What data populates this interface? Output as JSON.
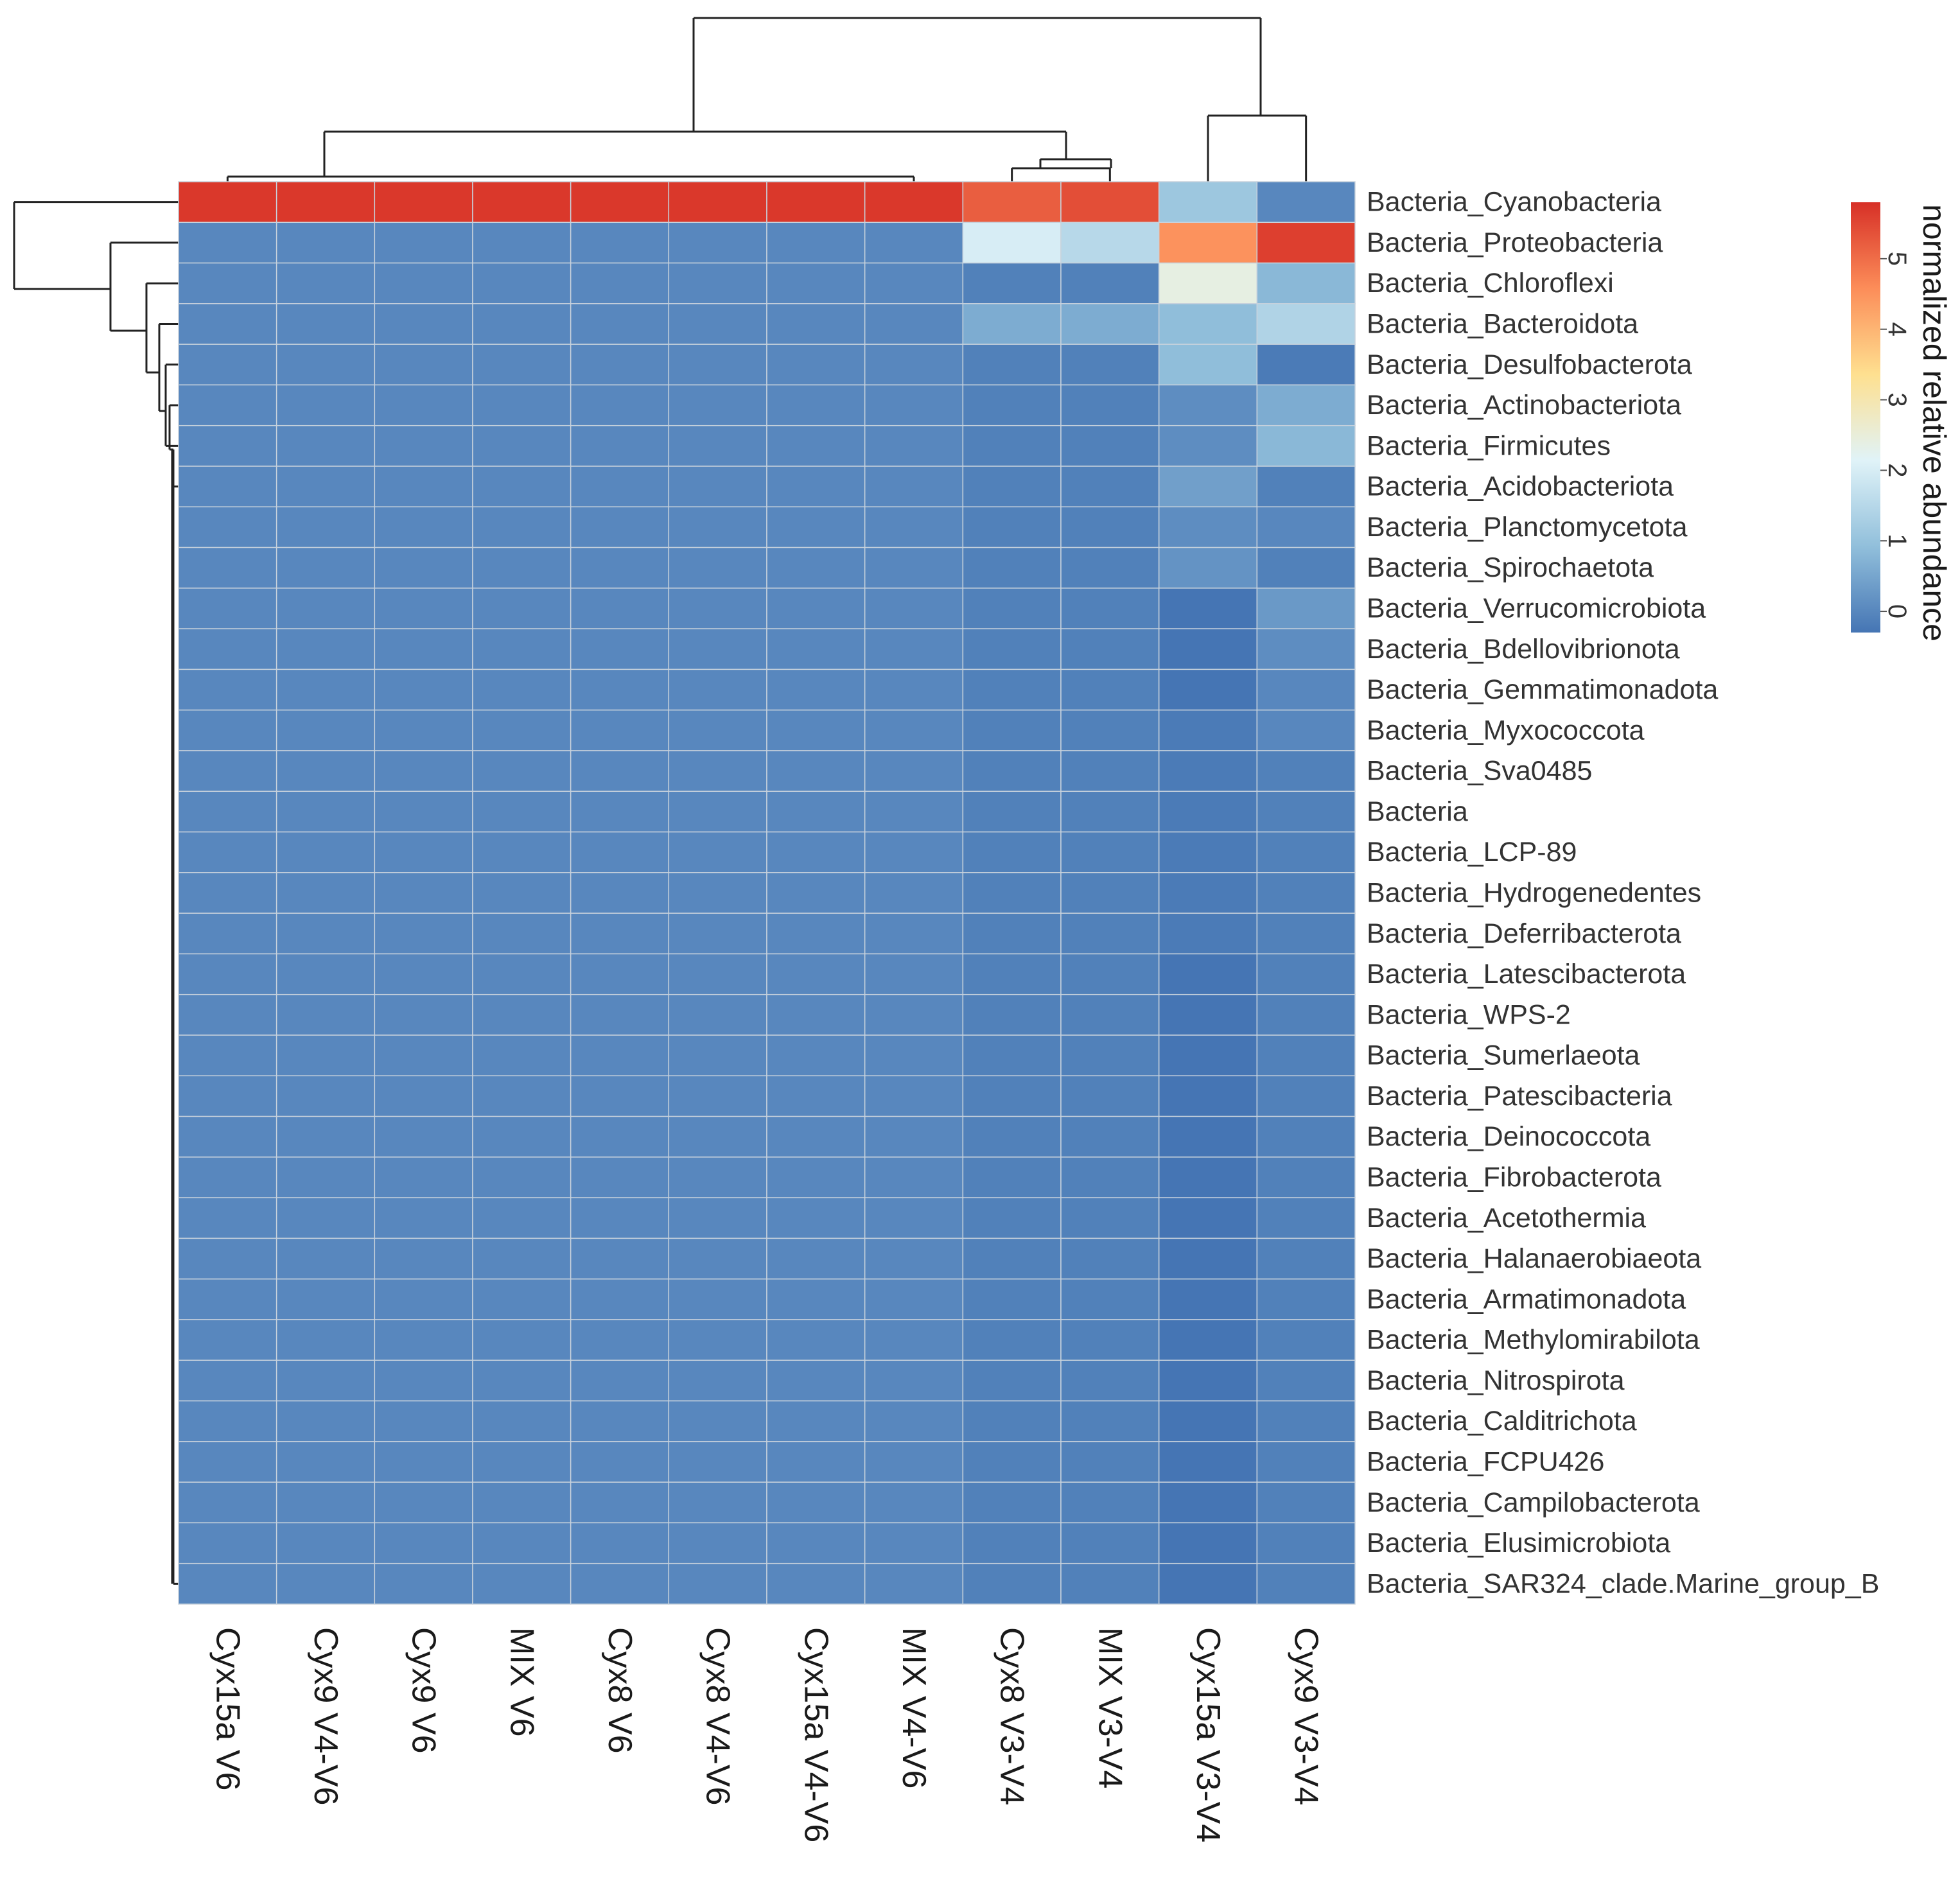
{
  "chart_data": {
    "type": "heatmap",
    "title": "",
    "legend": {
      "title": "normalized relative abundance",
      "ticks": [
        0,
        1,
        2,
        3,
        4,
        5
      ],
      "range": [
        -0.3,
        5.8
      ],
      "placement": "right",
      "colors": [
        "#4575b4",
        "#91bfdb",
        "#e0f3f8",
        "#fee090",
        "#fc8d59",
        "#d73027"
      ]
    },
    "columns": [
      "Cyx15a V6",
      "Cyx9 V4-V6",
      "Cyx9 V6",
      "MIX V6",
      "Cyx8 V6",
      "Cyx8 V4-V6",
      "Cyx15a V4-V6",
      "MIX V4-V6",
      "Cyx8 V3-V4",
      "MIX V3-V4",
      "Cyx15a V3-V4",
      "Cyx9 V3-V4"
    ],
    "rows": [
      "Bacteria_Cyanobacteria",
      "Bacteria_Proteobacteria",
      "Bacteria_Chloroflexi",
      "Bacteria_Bacteroidota",
      "Bacteria_Desulfobacterota",
      "Bacteria_Actinobacteriota",
      "Bacteria_Firmicutes",
      "Bacteria_Acidobacteriota",
      "Bacteria_Planctomycetota",
      "Bacteria_Spirochaetota",
      "Bacteria_Verrucomicrobiota",
      "Bacteria_Bdellovibrionota",
      "Bacteria_Gemmatimonadota",
      "Bacteria_Myxococcota",
      "Bacteria_Sva0485",
      "Bacteria",
      "Bacteria_LCP-89",
      "Bacteria_Hydrogenedentes",
      "Bacteria_Deferribacterota",
      "Bacteria_Latescibacterota",
      "Bacteria_WPS-2",
      "Bacteria_Sumerlaeota",
      "Bacteria_Patescibacteria",
      "Bacteria_Deinococcota",
      "Bacteria_Fibrobacterota",
      "Bacteria_Acetothermia",
      "Bacteria_Halanaerobiaeota",
      "Bacteria_Armatimonadota",
      "Bacteria_Methylomirabilota",
      "Bacteria_Nitrospirota",
      "Bacteria_Calditrichota",
      "Bacteria_FCPU426",
      "Bacteria_Campilobacterota",
      "Bacteria_Elusimicrobiota",
      "Bacteria_SAR324_clade.Marine_group_B"
    ],
    "values": [
      [
        5.7,
        5.7,
        5.7,
        5.7,
        5.7,
        5.7,
        5.7,
        5.7,
        5.2,
        5.4,
        1.1,
        0.0
      ],
      [
        0.0,
        0.0,
        0.0,
        0.0,
        0.0,
        0.0,
        0.0,
        0.0,
        2.0,
        1.5,
        4.5,
        5.6
      ],
      [
        0.0,
        0.0,
        0.0,
        0.0,
        0.0,
        0.0,
        0.0,
        0.0,
        -0.1,
        -0.1,
        2.4,
        0.8
      ],
      [
        0.0,
        0.0,
        0.0,
        0.0,
        0.0,
        0.0,
        0.0,
        0.0,
        0.6,
        0.6,
        0.9,
        1.4
      ],
      [
        0.0,
        0.0,
        0.0,
        0.0,
        0.0,
        0.0,
        0.0,
        0.0,
        -0.1,
        -0.1,
        0.9,
        -0.2
      ],
      [
        0.0,
        0.0,
        0.0,
        0.0,
        0.0,
        0.0,
        0.0,
        0.0,
        -0.1,
        -0.1,
        0.1,
        0.6
      ],
      [
        0.0,
        0.0,
        0.0,
        0.0,
        0.0,
        0.0,
        0.0,
        0.0,
        -0.1,
        -0.1,
        0.1,
        0.8
      ],
      [
        0.0,
        0.0,
        0.0,
        0.0,
        0.0,
        0.0,
        0.0,
        0.0,
        -0.1,
        -0.1,
        0.4,
        -0.1
      ],
      [
        0.0,
        0.0,
        0.0,
        0.0,
        0.0,
        0.0,
        0.0,
        0.0,
        -0.1,
        -0.1,
        0.1,
        0.0
      ],
      [
        0.0,
        0.0,
        0.0,
        0.0,
        0.0,
        0.0,
        0.0,
        0.0,
        -0.1,
        -0.1,
        0.2,
        -0.1
      ],
      [
        0.0,
        0.0,
        0.0,
        0.0,
        0.0,
        0.0,
        0.0,
        0.0,
        -0.1,
        -0.1,
        -0.3,
        0.3
      ],
      [
        0.0,
        0.0,
        0.0,
        0.0,
        0.0,
        0.0,
        0.0,
        0.0,
        -0.1,
        -0.1,
        -0.3,
        0.1
      ],
      [
        0.0,
        0.0,
        0.0,
        0.0,
        0.0,
        0.0,
        0.0,
        0.0,
        -0.1,
        -0.1,
        -0.3,
        0.0
      ],
      [
        0.0,
        0.0,
        0.0,
        0.0,
        0.0,
        0.0,
        0.0,
        0.0,
        -0.1,
        -0.1,
        -0.2,
        0.0
      ],
      [
        0.0,
        0.0,
        0.0,
        0.0,
        0.0,
        0.0,
        0.0,
        0.0,
        -0.1,
        -0.1,
        -0.2,
        -0.1
      ],
      [
        0.0,
        0.0,
        0.0,
        0.0,
        0.0,
        0.0,
        0.0,
        0.0,
        -0.1,
        -0.1,
        -0.2,
        -0.1
      ],
      [
        0.0,
        0.0,
        0.0,
        0.0,
        0.0,
        0.0,
        0.0,
        0.0,
        -0.1,
        -0.1,
        -0.2,
        -0.1
      ],
      [
        0.0,
        0.0,
        0.0,
        0.0,
        0.0,
        0.0,
        0.0,
        0.0,
        -0.1,
        -0.1,
        -0.2,
        -0.1
      ],
      [
        0.0,
        0.0,
        0.0,
        0.0,
        0.0,
        0.0,
        0.0,
        0.0,
        -0.1,
        -0.1,
        -0.2,
        -0.1
      ],
      [
        0.0,
        0.0,
        0.0,
        0.0,
        0.0,
        0.0,
        0.0,
        0.0,
        -0.1,
        -0.1,
        -0.3,
        -0.1
      ],
      [
        0.0,
        0.0,
        0.0,
        0.0,
        0.0,
        0.0,
        0.0,
        0.0,
        -0.1,
        -0.1,
        -0.3,
        -0.1
      ],
      [
        0.0,
        0.0,
        0.0,
        0.0,
        0.0,
        0.0,
        0.0,
        0.0,
        -0.1,
        -0.1,
        -0.3,
        -0.1
      ],
      [
        0.0,
        0.0,
        0.0,
        0.0,
        0.0,
        0.0,
        0.0,
        0.0,
        -0.1,
        -0.1,
        -0.3,
        -0.1
      ],
      [
        0.0,
        0.0,
        0.0,
        0.0,
        0.0,
        0.0,
        0.0,
        0.0,
        -0.1,
        -0.1,
        -0.3,
        -0.1
      ],
      [
        0.0,
        0.0,
        0.0,
        0.0,
        0.0,
        0.0,
        0.0,
        0.0,
        -0.1,
        -0.1,
        -0.3,
        -0.1
      ],
      [
        0.0,
        0.0,
        0.0,
        0.0,
        0.0,
        0.0,
        0.0,
        0.0,
        -0.1,
        -0.1,
        -0.3,
        -0.1
      ],
      [
        0.0,
        0.0,
        0.0,
        0.0,
        0.0,
        0.0,
        0.0,
        0.0,
        -0.1,
        -0.1,
        -0.3,
        -0.1
      ],
      [
        0.0,
        0.0,
        0.0,
        0.0,
        0.0,
        0.0,
        0.0,
        0.0,
        -0.1,
        -0.1,
        -0.3,
        -0.1
      ],
      [
        0.0,
        0.0,
        0.0,
        0.0,
        0.0,
        0.0,
        0.0,
        0.0,
        -0.1,
        -0.1,
        -0.3,
        -0.1
      ],
      [
        0.0,
        0.0,
        0.0,
        0.0,
        0.0,
        0.0,
        0.0,
        0.0,
        -0.1,
        -0.1,
        -0.3,
        -0.1
      ],
      [
        0.0,
        0.0,
        0.0,
        0.0,
        0.0,
        0.0,
        0.0,
        0.0,
        -0.1,
        -0.1,
        -0.3,
        -0.1
      ],
      [
        0.0,
        0.0,
        0.0,
        0.0,
        0.0,
        0.0,
        0.0,
        0.0,
        -0.1,
        -0.1,
        -0.3,
        -0.1
      ],
      [
        0.0,
        0.0,
        0.0,
        0.0,
        0.0,
        0.0,
        0.0,
        0.0,
        -0.1,
        -0.1,
        -0.3,
        -0.1
      ],
      [
        0.0,
        0.0,
        0.0,
        0.0,
        0.0,
        0.0,
        0.0,
        0.0,
        -0.1,
        -0.1,
        -0.3,
        -0.1
      ],
      [
        0.0,
        0.0,
        0.0,
        0.0,
        0.0,
        0.0,
        0.0,
        0.0,
        -0.1,
        -0.1,
        -0.3,
        -0.1
      ]
    ]
  }
}
